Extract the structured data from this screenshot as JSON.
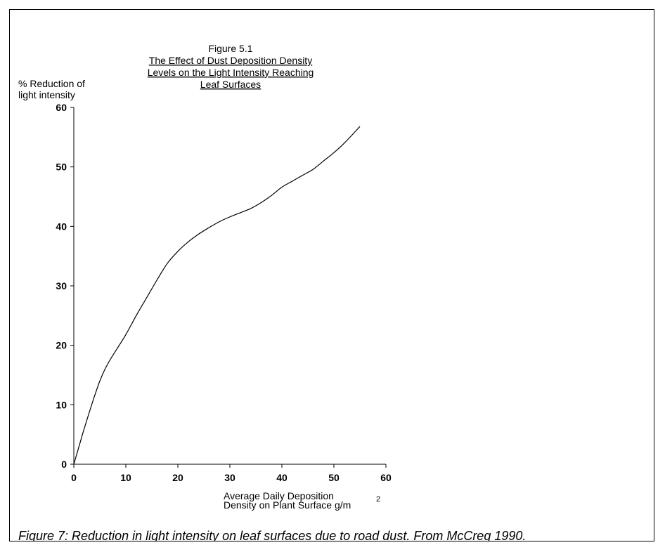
{
  "caption": "Figure 7: Reduction in light intensity on leaf surfaces due to road dust. From McCreg 1990.",
  "chart_data": {
    "type": "line",
    "figure_label": "Figure 5.1",
    "title_lines": [
      "The Effect of Dust Deposition Density",
      "Levels on the Light Intensity Reaching",
      "Leaf Surfaces"
    ],
    "ylabel_lines": [
      "% Reduction of",
      "light intensity"
    ],
    "xlabel_lines": [
      "Average Daily Deposition",
      "Density on Plant Surface g/m"
    ],
    "xlabel_superscript": "2",
    "xlim": [
      0,
      60
    ],
    "ylim": [
      0,
      60
    ],
    "x_ticks": [
      0,
      10,
      20,
      30,
      40,
      50,
      60
    ],
    "y_ticks": [
      0,
      10,
      20,
      30,
      40,
      50,
      60
    ],
    "grid": false,
    "line_color": "#000000",
    "series": [
      {
        "x": [
          0,
          1,
          2,
          3,
          4,
          5,
          6,
          7,
          8,
          10,
          12,
          14,
          16,
          18,
          20,
          22,
          24,
          26,
          28,
          30,
          32,
          34,
          36,
          38,
          40,
          42,
          44,
          46,
          48,
          50,
          52,
          55
        ],
        "y": [
          0,
          3,
          6,
          8.8,
          11.5,
          14,
          16,
          17.6,
          19,
          21.8,
          25,
          28,
          31,
          33.8,
          35.8,
          37.4,
          38.7,
          39.8,
          40.8,
          41.6,
          42.3,
          43,
          44,
          45.2,
          46.6,
          47.6,
          48.6,
          49.6,
          51,
          52.4,
          54,
          56.8
        ]
      }
    ]
  }
}
